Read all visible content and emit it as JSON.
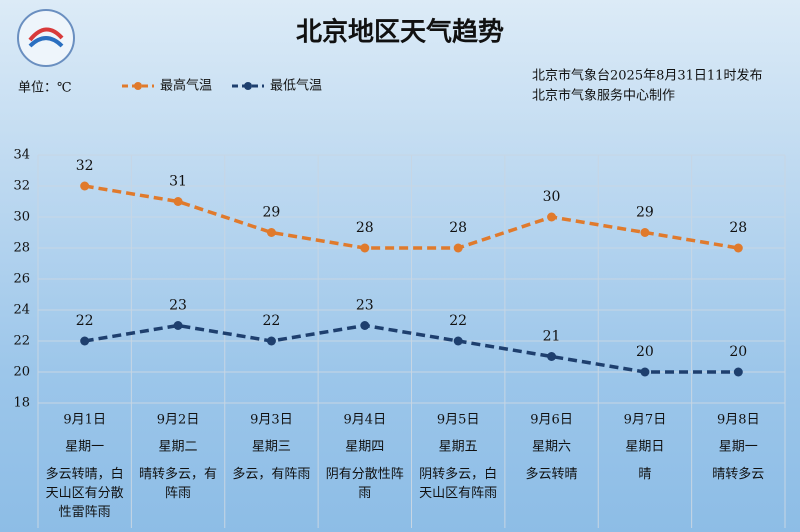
{
  "chart_data": {
    "type": "line",
    "title": "北京地区天气趋势",
    "y_label": "单位：℃",
    "annotations": [
      "北京市气象台2025年8月31日11时发布",
      "北京市气象服务中心制作"
    ],
    "categories": [
      "9月1日",
      "9月2日",
      "9月3日",
      "9月4日",
      "9月5日",
      "9月6日",
      "9月7日",
      "9月8日"
    ],
    "weekdays": [
      "星期一",
      "星期二",
      "星期三",
      "星期四",
      "星期五",
      "星期六",
      "星期日",
      "星期一"
    ],
    "weather": [
      "多云转晴，白天山区有分散性雷阵雨",
      "晴转多云，有阵雨",
      "多云，有阵雨",
      "阴有分散性阵雨",
      "阴转多云，白天山区有阵雨",
      "多云转晴",
      "晴",
      "晴转多云"
    ],
    "series": [
      {
        "name": "最高气温",
        "color": "#e07a2c",
        "values": [
          32,
          31,
          29,
          28,
          28,
          30,
          29,
          28
        ]
      },
      {
        "name": "最低气温",
        "color": "#1e3f6e",
        "values": [
          22,
          23,
          22,
          23,
          22,
          21,
          20,
          20
        ]
      }
    ],
    "ylim": [
      18,
      34
    ],
    "yticks": [
      18,
      20,
      22,
      24,
      26,
      28,
      30,
      32,
      34
    ],
    "grid": true
  }
}
